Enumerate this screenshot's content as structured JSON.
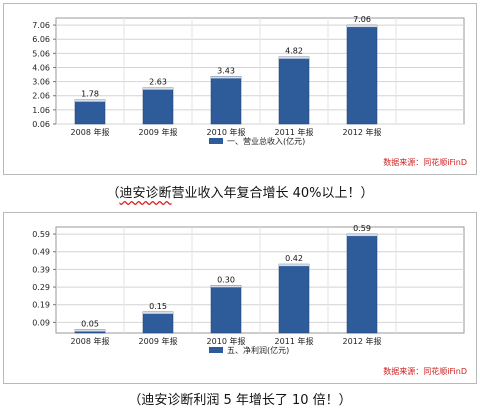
{
  "chart_data": [
    {
      "type": "bar",
      "categories": [
        "2008 年报",
        "2009 年报",
        "2010 年报",
        "2011 年报",
        "2012 年报"
      ],
      "values": [
        1.78,
        2.63,
        3.43,
        4.82,
        7.06
      ],
      "value_labels": [
        "1.78",
        "2.63",
        "3.43",
        "4.82",
        "7.06"
      ],
      "yticks": [
        "0.06",
        "1.06",
        "2.06",
        "3.06",
        "4.06",
        "5.06",
        "6.06",
        "7.06"
      ],
      "ylim": [
        0.06,
        7.56
      ],
      "legend": "一、营业总收入(亿元)",
      "source": "数据来源：同花顺iFinD",
      "grid": true,
      "bar_color": "#2e5c9a"
    },
    {
      "type": "bar",
      "categories": [
        "2008 年报",
        "2009 年报",
        "2010 年报",
        "2011 年报",
        "2012 年报"
      ],
      "values": [
        0.05,
        0.15,
        0.3,
        0.42,
        0.59
      ],
      "value_labels": [
        "0.05",
        "0.15",
        "0.30",
        "0.42",
        "0.59"
      ],
      "yticks": [
        "0.09",
        "0.19",
        "0.29",
        "0.39",
        "0.49",
        "0.59"
      ],
      "ylim": [
        0.03,
        0.63
      ],
      "legend": "五、净利润(亿元)",
      "source": "数据来源：同花顺iFinD",
      "grid": true,
      "bar_color": "#2e5c9a"
    }
  ],
  "captions": {
    "first_prefix": "（",
    "first_underlined": "迪安诊断",
    "first_suffix": "营业收入年复合增长 40%以上！）",
    "second_prefix": "（",
    "second_underlined": "迪安诊断",
    "second_suffix": "利润 5 年增长了 10 倍！）"
  }
}
